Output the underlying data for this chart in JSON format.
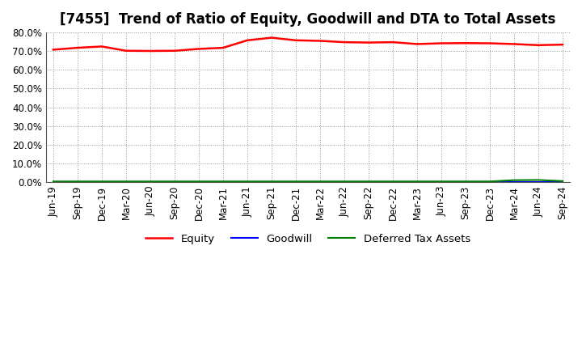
{
  "title": "[7455]  Trend of Ratio of Equity, Goodwill and DTA to Total Assets",
  "x_labels": [
    "Jun-19",
    "Sep-19",
    "Dec-19",
    "Mar-20",
    "Jun-20",
    "Sep-20",
    "Dec-20",
    "Mar-21",
    "Jun-21",
    "Sep-21",
    "Dec-21",
    "Mar-22",
    "Jun-22",
    "Sep-22",
    "Dec-22",
    "Mar-23",
    "Jun-23",
    "Sep-23",
    "Dec-23",
    "Mar-24",
    "Jun-24",
    "Sep-24"
  ],
  "equity": [
    70.8,
    71.8,
    72.5,
    70.2,
    70.1,
    70.2,
    71.2,
    71.8,
    75.8,
    77.2,
    75.8,
    75.5,
    74.8,
    74.6,
    74.8,
    73.8,
    74.2,
    74.3,
    74.2,
    73.8,
    73.2,
    73.5
  ],
  "goodwill": [
    0.0,
    0.0,
    0.0,
    0.0,
    0.0,
    0.0,
    0.0,
    0.0,
    0.0,
    0.0,
    0.0,
    0.0,
    0.0,
    0.0,
    0.0,
    0.0,
    0.0,
    0.0,
    0.0,
    0.0,
    0.0,
    0.0
  ],
  "dta": [
    0.3,
    0.3,
    0.3,
    0.3,
    0.3,
    0.3,
    0.3,
    0.3,
    0.3,
    0.3,
    0.3,
    0.3,
    0.3,
    0.3,
    0.3,
    0.3,
    0.3,
    0.3,
    0.3,
    1.0,
    1.1,
    0.5
  ],
  "equity_color": "#FF0000",
  "goodwill_color": "#0000FF",
  "dta_color": "#008000",
  "ylim": [
    0.0,
    80.0
  ],
  "yticks": [
    0.0,
    10.0,
    20.0,
    30.0,
    40.0,
    50.0,
    60.0,
    70.0,
    80.0
  ],
  "bg_color": "#FFFFFF",
  "grid_color": "#999999",
  "legend_labels": [
    "Equity",
    "Goodwill",
    "Deferred Tax Assets"
  ],
  "title_fontsize": 12,
  "axis_fontsize": 8.5,
  "legend_fontsize": 9.5
}
